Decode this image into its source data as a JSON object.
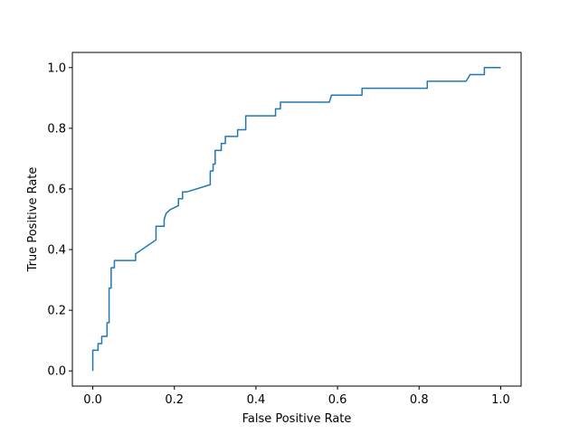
{
  "chart_data": {
    "type": "line",
    "xlabel": "False Positive Rate",
    "ylabel": "True Positive Rate",
    "xlim": [
      -0.05,
      1.05
    ],
    "ylim": [
      -0.05,
      1.05
    ],
    "xticks": [
      0.0,
      0.2,
      0.4,
      0.6,
      0.8,
      1.0
    ],
    "xtick_labels": [
      "0.0",
      "0.2",
      "0.4",
      "0.6",
      "0.8",
      "1.0"
    ],
    "yticks": [
      0.0,
      0.2,
      0.4,
      0.6,
      0.8,
      1.0
    ],
    "ytick_labels": [
      "0.0",
      "0.2",
      "0.4",
      "0.6",
      "0.8",
      "1.0"
    ],
    "grid": false,
    "line_color": "#1f77b4",
    "series": [
      {
        "x": [
          0.0,
          0.0,
          0.013,
          0.013,
          0.022,
          0.022,
          0.035,
          0.035,
          0.04,
          0.04,
          0.045,
          0.045,
          0.053,
          0.053,
          0.105,
          0.105,
          0.155,
          0.155,
          0.175,
          0.175,
          0.18,
          0.19,
          0.21,
          0.21,
          0.22,
          0.22,
          0.23,
          0.288,
          0.288,
          0.295,
          0.295,
          0.3,
          0.3,
          0.315,
          0.315,
          0.325,
          0.325,
          0.355,
          0.355,
          0.375,
          0.375,
          0.448,
          0.448,
          0.46,
          0.46,
          0.58,
          0.585,
          0.585,
          0.66,
          0.66,
          0.82,
          0.82,
          0.915,
          0.925,
          0.96,
          0.96,
          1.0
        ],
        "y": [
          0.0,
          0.068,
          0.068,
          0.09,
          0.09,
          0.114,
          0.114,
          0.159,
          0.159,
          0.273,
          0.273,
          0.34,
          0.34,
          0.364,
          0.364,
          0.386,
          0.432,
          0.477,
          0.477,
          0.5,
          0.52,
          0.532,
          0.545,
          0.568,
          0.568,
          0.59,
          0.59,
          0.614,
          0.659,
          0.659,
          0.682,
          0.682,
          0.727,
          0.727,
          0.75,
          0.75,
          0.773,
          0.773,
          0.795,
          0.795,
          0.841,
          0.841,
          0.864,
          0.864,
          0.886,
          0.886,
          0.909,
          0.909,
          0.909,
          0.932,
          0.932,
          0.955,
          0.955,
          0.977,
          0.977,
          1.0,
          1.0
        ]
      }
    ]
  }
}
